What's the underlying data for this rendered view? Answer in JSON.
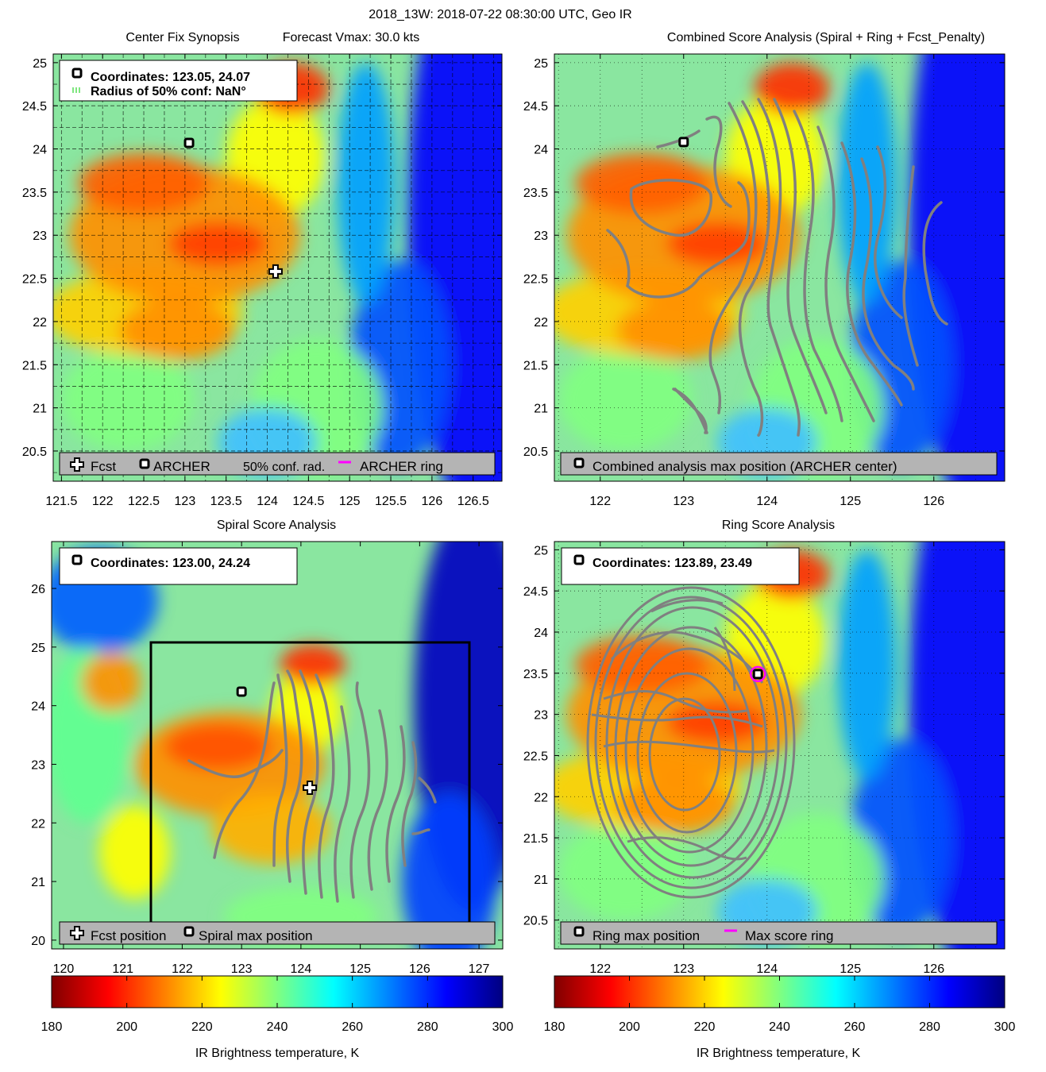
{
  "suptitle": "2018_13W: 2018-07-22 08:30:00 UTC, Geo IR",
  "colors": {
    "scale": [
      "#800000",
      "#ff0000",
      "#ff8000",
      "#ffff00",
      "#80ff80",
      "#00ffff",
      "#0080ff",
      "#0000ff",
      "#000080"
    ],
    "contour": "#808080",
    "legend_bg": "#b4b4b4",
    "ring": "#ff00ff",
    "grid": "#000000"
  },
  "chart_data": [
    {
      "id": "tl",
      "type": "heatmap",
      "title_left": "Center Fix Synopsis",
      "title_right": "Forecast Vmax: 30.0 kts",
      "xlim": [
        121.4,
        126.85
      ],
      "ylim": [
        20.15,
        25.1
      ],
      "xticks": [
        121.5,
        122,
        122.5,
        123,
        123.5,
        124,
        124.5,
        125,
        125.5,
        126,
        126.5
      ],
      "yticks": [
        20.5,
        21,
        21.5,
        22,
        22.5,
        23,
        23.5,
        24,
        24.5,
        25
      ],
      "grid": "dense",
      "markers": [
        {
          "kind": "archer",
          "lon": 123.05,
          "lat": 24.07
        },
        {
          "kind": "fcst",
          "lon": 124.1,
          "lat": 22.58
        }
      ],
      "info": {
        "line1": "Coordinates: 123.05, 24.07",
        "line2": "Radius of 50% conf: NaN°"
      },
      "legend": [
        {
          "icon": "fcst",
          "label": "Fcst"
        },
        {
          "icon": "archer",
          "label": "ARCHER"
        },
        {
          "icon": "none",
          "label": "50% conf. rad."
        },
        {
          "icon": "ring",
          "label": "ARCHER ring"
        }
      ]
    },
    {
      "id": "tr",
      "type": "heatmap",
      "title": "Combined Score Analysis (Spiral + Ring + Fcst_Penalty)",
      "xlim": [
        121.45,
        126.85
      ],
      "ylim": [
        20.15,
        25.1
      ],
      "xticks": [
        122,
        123,
        124,
        125,
        126
      ],
      "yticks": [
        20.5,
        21,
        21.5,
        22,
        22.5,
        23,
        23.5,
        24,
        24.5,
        25
      ],
      "grid": "sparse",
      "markers": [
        {
          "kind": "archer",
          "lon": 123.0,
          "lat": 24.08
        }
      ],
      "legend": [
        {
          "icon": "archer",
          "label": "Combined analysis max position (ARCHER center)"
        }
      ]
    },
    {
      "id": "bl",
      "type": "heatmap",
      "title": "Spiral Score Analysis",
      "xlim": [
        119.8,
        127.4
      ],
      "ylim": [
        19.85,
        26.8
      ],
      "xticks": [
        120,
        121,
        122,
        123,
        124,
        125,
        126,
        127
      ],
      "yticks": [
        20,
        21,
        22,
        23,
        24,
        25,
        26
      ],
      "grid": "none",
      "markers": [
        {
          "kind": "archer",
          "lon": 123.0,
          "lat": 24.24
        },
        {
          "kind": "fcst",
          "lon": 124.15,
          "lat": 22.6
        }
      ],
      "info": {
        "line1": "Coordinates: 123.00, 24.24"
      },
      "legend": [
        {
          "icon": "fcst",
          "label": "Fcst position"
        },
        {
          "icon": "archer",
          "label": "Spiral max position"
        }
      ]
    },
    {
      "id": "br",
      "type": "heatmap",
      "title": "Ring Score Analysis",
      "xlim": [
        121.45,
        126.85
      ],
      "ylim": [
        20.15,
        25.1
      ],
      "xticks": [
        122,
        123,
        124,
        125,
        126
      ],
      "yticks": [
        20.5,
        21,
        21.5,
        22,
        22.5,
        23,
        23.5,
        24,
        24.5,
        25
      ],
      "grid": "sparse",
      "markers": [
        {
          "kind": "archer",
          "lon": 123.89,
          "lat": 23.49
        }
      ],
      "info": {
        "line1": "Coordinates: 123.89, 23.49"
      },
      "legend": [
        {
          "icon": "archer",
          "label": "Ring max position"
        },
        {
          "icon": "ring",
          "label": "Max score ring"
        }
      ]
    }
  ],
  "colorbar": {
    "label": "IR Brightness temperature, K",
    "range": [
      180,
      300
    ],
    "ticks": [
      180,
      200,
      220,
      240,
      260,
      280,
      300
    ]
  }
}
